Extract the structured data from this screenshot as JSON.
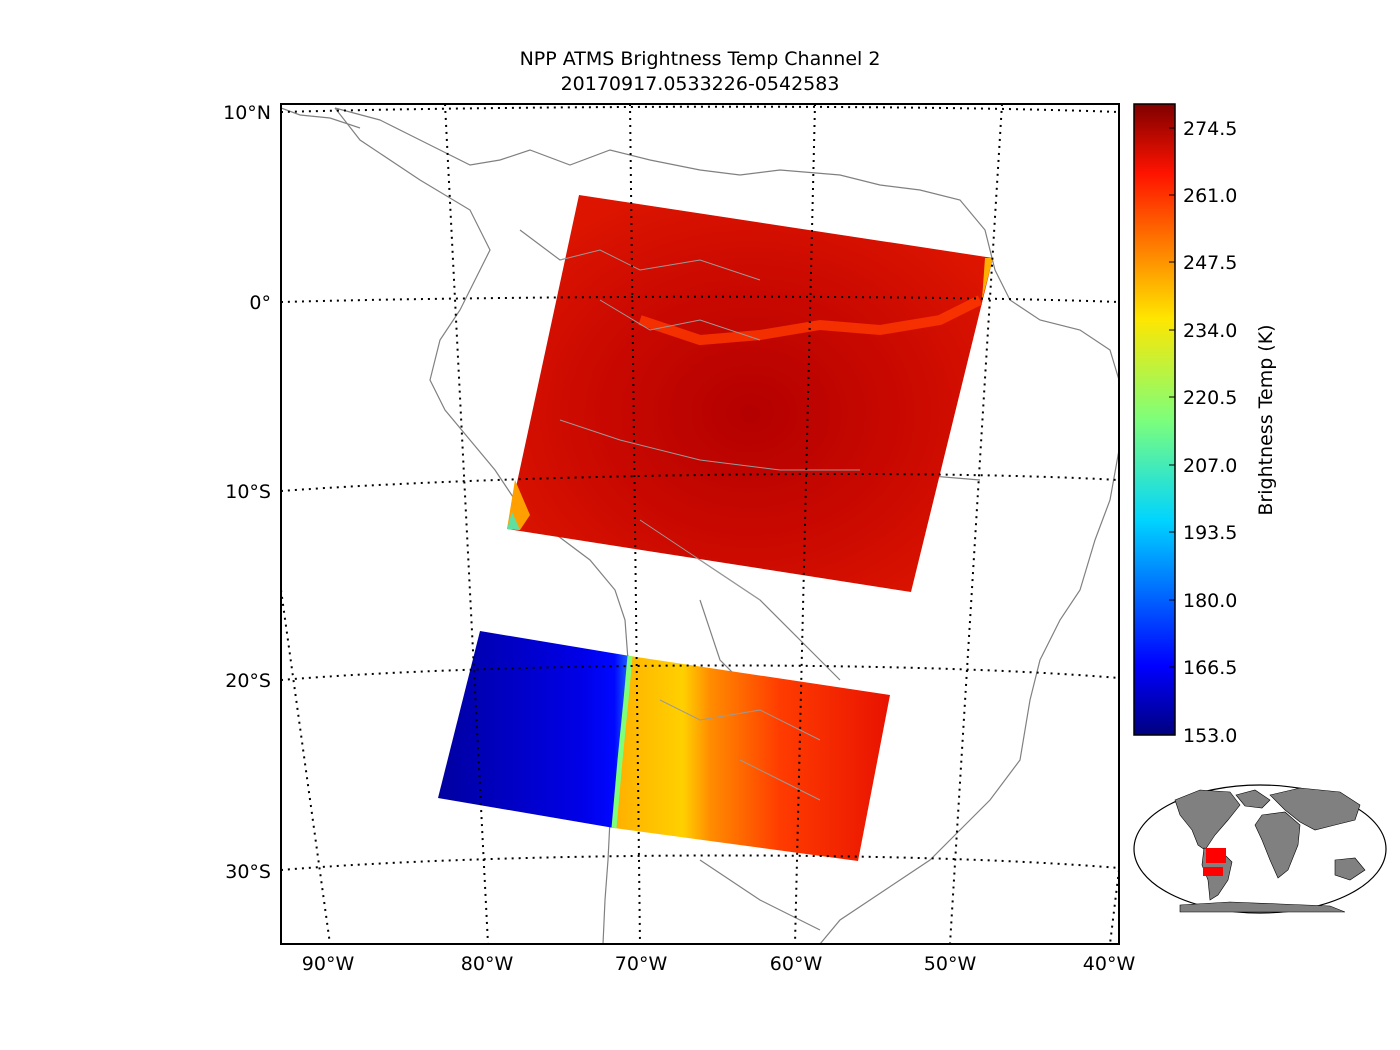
{
  "title_line1": "NPP ATMS Brightness Temp Channel 2",
  "title_line2": "20170917.0533226-0542583",
  "lat_labels": [
    "10°N",
    "0°",
    "10°S",
    "20°S",
    "30°S"
  ],
  "lon_labels": [
    "90°W",
    "80°W",
    "70°W",
    "60°W",
    "50°W",
    "40°W"
  ],
  "colorbar": {
    "label": "Brightness Temp (K)",
    "ticks": [
      "274.5",
      "261.0",
      "247.5",
      "234.0",
      "220.5",
      "207.0",
      "193.5",
      "180.0",
      "166.5",
      "153.0"
    ],
    "min": 153.0,
    "max": 280.0,
    "colormap": "jet"
  },
  "swaths": [
    {
      "name": "northern-swath",
      "dominant_value_K": 277
    },
    {
      "name": "southern-swath",
      "ocean_value_K": 165,
      "land_value_K": 268
    }
  ],
  "inset": {
    "land_color": "#808080",
    "swath_color": "#ff0000"
  },
  "colors": {
    "coastline": "#808080",
    "grid": "#000000"
  }
}
